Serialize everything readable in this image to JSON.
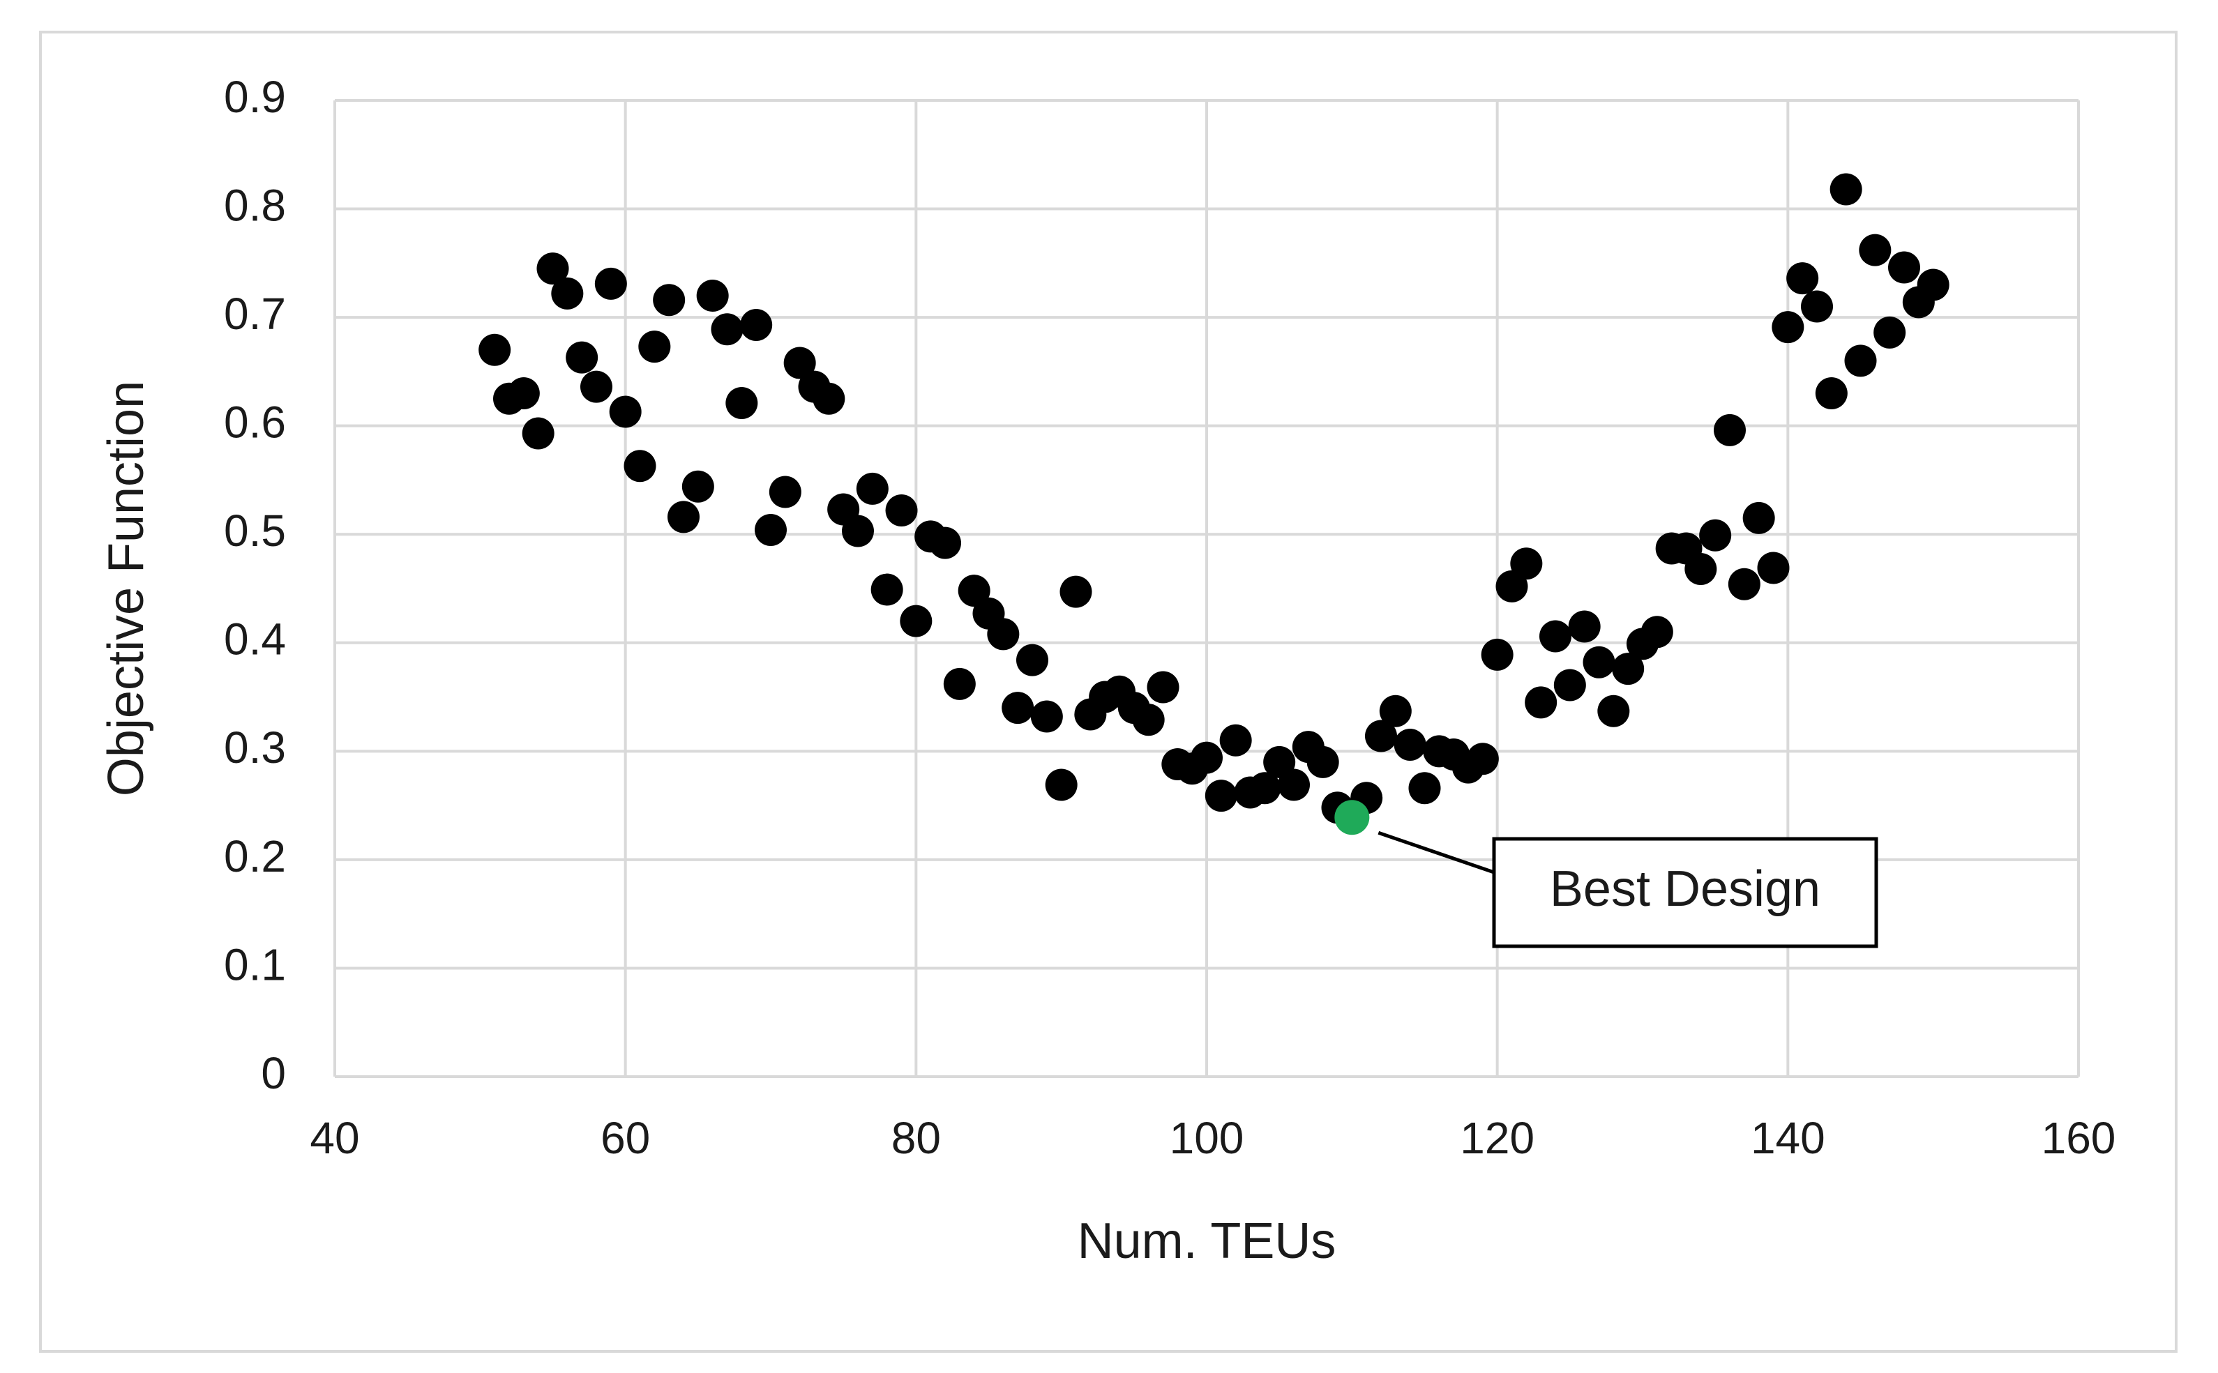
{
  "chart_data": {
    "type": "scatter",
    "title": "",
    "xlabel": "Num. TEUs",
    "ylabel": "Objective Function",
    "xlim": [
      40,
      160
    ],
    "ylim": [
      0,
      0.9
    ],
    "xticks": [
      40,
      60,
      80,
      100,
      120,
      140,
      160
    ],
    "yticks": [
      0,
      0.1,
      0.2,
      0.3,
      0.4,
      0.5,
      0.6,
      0.7,
      0.8,
      0.9
    ],
    "xtick_labels": [
      "40",
      "60",
      "80",
      "100",
      "120",
      "140",
      "160"
    ],
    "ytick_labels": [
      "0",
      "0.1",
      "0.2",
      "0.3",
      "0.4",
      "0.5",
      "0.6",
      "0.7",
      "0.8",
      "0.9"
    ],
    "grid": true,
    "legend": "none",
    "colors": {
      "points": "#000000",
      "highlight": "#1faa59",
      "grid": "#d9d9d9",
      "frame": "#d9d9d9"
    },
    "series": [
      {
        "x": [
          51,
          52,
          53,
          54,
          55,
          56,
          57,
          58,
          59,
          60,
          61,
          62,
          63,
          64,
          65,
          66,
          67,
          68,
          69,
          70,
          71,
          72,
          73,
          74,
          75,
          76,
          77,
          78,
          79,
          80,
          81,
          82,
          83,
          84,
          85,
          86,
          87,
          88,
          89,
          90,
          91,
          92,
          93,
          94,
          95,
          96,
          97,
          98,
          99,
          100,
          101,
          102,
          103,
          104,
          105,
          106,
          107,
          108,
          109,
          111,
          112,
          113,
          114,
          115,
          116,
          117,
          118,
          119,
          120,
          121,
          122,
          123,
          124,
          125,
          126,
          127,
          128,
          129,
          130,
          131,
          132,
          133,
          134,
          135,
          136,
          137,
          138,
          139,
          140,
          141,
          142,
          143,
          144,
          145,
          146,
          147,
          148,
          149,
          150
        ],
        "y": [
          0.67,
          0.625,
          0.63,
          0.593,
          0.745,
          0.722,
          0.663,
          0.636,
          0.731,
          0.613,
          0.563,
          0.673,
          0.716,
          0.516,
          0.544,
          0.72,
          0.689,
          0.621,
          0.693,
          0.504,
          0.539,
          0.658,
          0.636,
          0.625,
          0.523,
          0.503,
          0.542,
          0.449,
          0.522,
          0.42,
          0.498,
          0.492,
          0.362,
          0.448,
          0.427,
          0.408,
          0.34,
          0.384,
          0.332,
          0.269,
          0.447,
          0.334,
          0.35,
          0.355,
          0.34,
          0.329,
          0.359,
          0.288,
          0.284,
          0.294,
          0.259,
          0.31,
          0.262,
          0.266,
          0.29,
          0.269,
          0.304,
          0.29,
          0.248,
          0.257,
          0.314,
          0.337,
          0.306,
          0.266,
          0.3,
          0.297,
          0.285,
          0.293,
          0.389,
          0.452,
          0.473,
          0.345,
          0.406,
          0.361,
          0.415,
          0.382,
          0.337,
          0.376,
          0.399,
          0.41,
          0.487,
          0.487,
          0.468,
          0.499,
          0.596,
          0.454,
          0.515,
          0.469,
          0.691,
          0.736,
          0.71,
          0.63,
          0.818,
          0.66,
          0.762,
          0.686,
          0.746,
          0.714,
          0.73
        ]
      }
    ],
    "highlight": {
      "x": 110,
      "y": 0.239,
      "label": "Best Design"
    }
  }
}
